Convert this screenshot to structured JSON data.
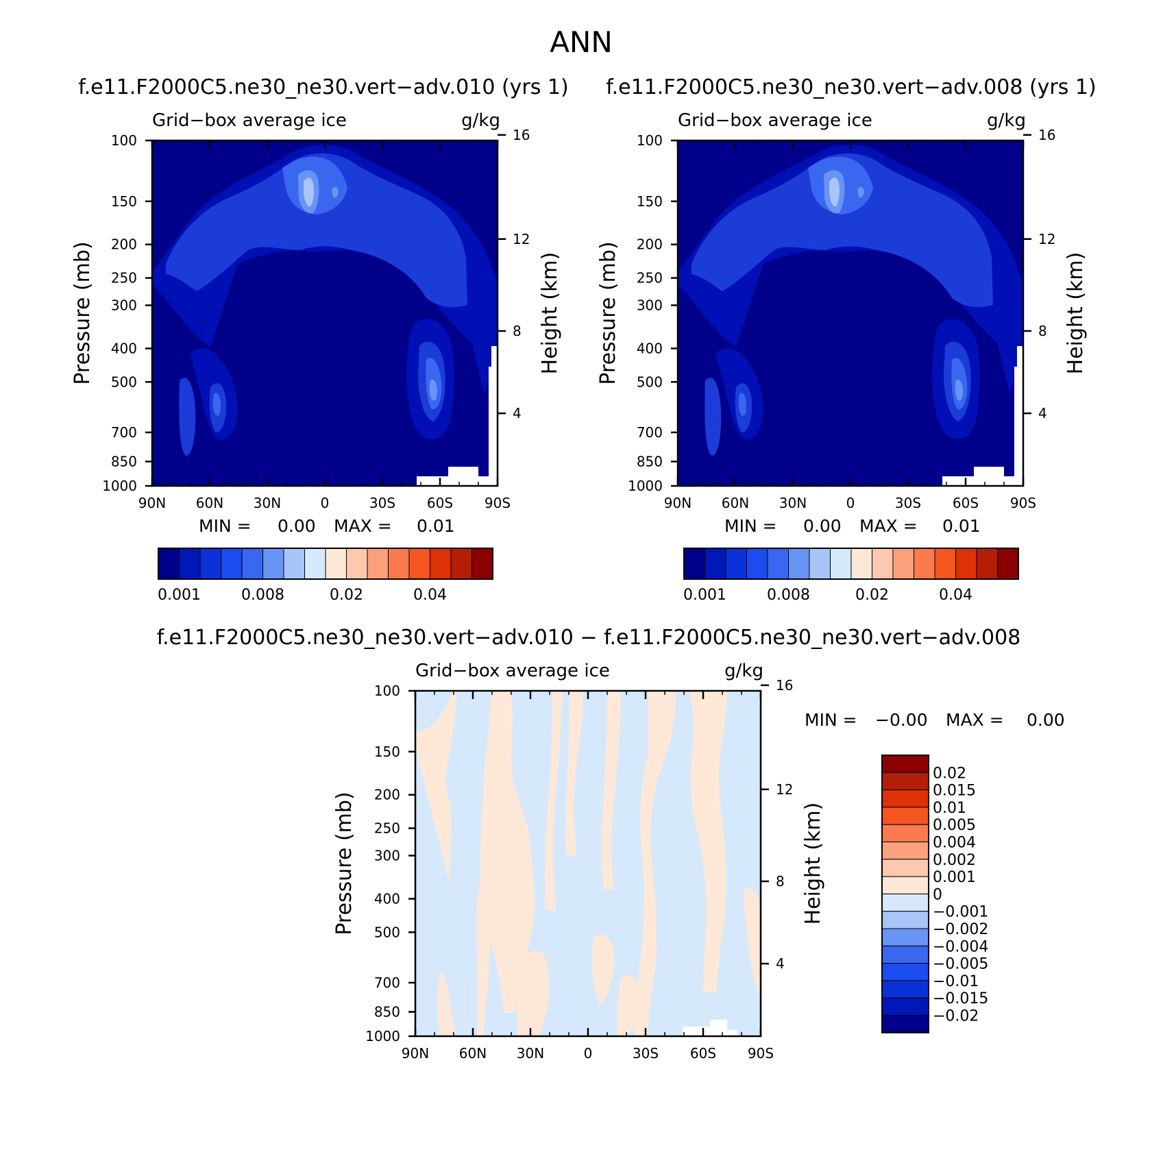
{
  "page": {
    "title": "ANN"
  },
  "colors": {
    "bg_deep": "#00008B",
    "shade1": "#0010B5",
    "shade2": "#1C3CD8",
    "shade3": "#3A67F0",
    "shade4": "#6894F5",
    "shade5": "#A9C4F6",
    "diff_neg": "#D6E9FC",
    "diff_pos": "#FDE8D7"
  },
  "chart_data": [
    {
      "type": "contour",
      "title": "f.e11.F2000C5.ne30_ne30.vert−adv.010 (yrs 1)",
      "variable": "Grid−box average ice",
      "units": "g/kg",
      "ylabel": "Pressure (mb)",
      "ylabel_right": "Height (km)",
      "x_ticks": [
        "90N",
        "60N",
        "30N",
        "0",
        "30S",
        "60S",
        "90S"
      ],
      "y_ticks": [
        "100",
        "150",
        "200",
        "250",
        "300",
        "400",
        "500",
        "700",
        "850",
        "1000"
      ],
      "y_right_ticks": [
        "16",
        "12",
        "8",
        "4"
      ],
      "stats": {
        "min_label": "MIN =",
        "min": "0.00",
        "max_label": "MAX =",
        "max": "0.01"
      },
      "colorbar": {
        "orientation": "horizontal",
        "labels": [
          "0.001",
          "0.008",
          "0.02",
          "0.04"
        ],
        "colors": [
          "#00008B",
          "#0018B8",
          "#0A32D8",
          "#1C4CF0",
          "#3A67F0",
          "#6894F5",
          "#A9C4F6",
          "#D6E9FC",
          "#FDE8D7",
          "#FCC9AE",
          "#FBA27C",
          "#F97A4F",
          "#F5561F",
          "#DD3109",
          "#B51E06",
          "#8B0000"
        ]
      }
    },
    {
      "type": "contour",
      "title": "f.e11.F2000C5.ne30_ne30.vert−adv.008 (yrs 1)",
      "variable": "Grid−box average ice",
      "units": "g/kg",
      "ylabel": "Pressure (mb)",
      "ylabel_right": "Height (km)",
      "x_ticks": [
        "90N",
        "60N",
        "30N",
        "0",
        "30S",
        "60S",
        "90S"
      ],
      "y_ticks": [
        "100",
        "150",
        "200",
        "250",
        "300",
        "400",
        "500",
        "700",
        "850",
        "1000"
      ],
      "y_right_ticks": [
        "16",
        "12",
        "8",
        "4"
      ],
      "stats": {
        "min_label": "MIN =",
        "min": "0.00",
        "max_label": "MAX =",
        "max": "0.01"
      },
      "colorbar": {
        "orientation": "horizontal",
        "labels": [
          "0.001",
          "0.008",
          "0.02",
          "0.04"
        ],
        "colors": [
          "#00008B",
          "#0018B8",
          "#0A32D8",
          "#1C4CF0",
          "#3A67F0",
          "#6894F5",
          "#A9C4F6",
          "#D6E9FC",
          "#FDE8D7",
          "#FCC9AE",
          "#FBA27C",
          "#F97A4F",
          "#F5561F",
          "#DD3109",
          "#B51E06",
          "#8B0000"
        ]
      }
    },
    {
      "type": "contour",
      "title": "f.e11.F2000C5.ne30_ne30.vert−adv.010 − f.e11.F2000C5.ne30_ne30.vert−adv.008",
      "variable": "Grid−box average ice",
      "units": "g/kg",
      "ylabel": "Pressure (mb)",
      "ylabel_right": "Height (km)",
      "x_ticks": [
        "90N",
        "60N",
        "30N",
        "0",
        "30S",
        "60S",
        "90S"
      ],
      "y_ticks": [
        "100",
        "150",
        "200",
        "250",
        "300",
        "400",
        "500",
        "700",
        "850",
        "1000"
      ],
      "y_right_ticks": [
        "16",
        "12",
        "8",
        "4"
      ],
      "stats": {
        "min_label": "MIN =",
        "min": "−0.00",
        "max_label": "MAX =",
        "max": "0.00"
      },
      "colorbar": {
        "orientation": "vertical",
        "labels": [
          "0.02",
          "0.015",
          "0.01",
          "0.005",
          "0.004",
          "0.002",
          "0.001",
          "0",
          "−0.001",
          "−0.002",
          "−0.004",
          "−0.005",
          "−0.01",
          "−0.015",
          "−0.02"
        ],
        "colors": [
          "#8B0000",
          "#B51E06",
          "#DD3109",
          "#F5561F",
          "#F97A4F",
          "#FBA27C",
          "#FCC9AE",
          "#FDE8D7",
          "#D6E9FC",
          "#A9C4F6",
          "#6894F5",
          "#3A67F0",
          "#1C4CF0",
          "#0A32D8",
          "#0018B8",
          "#00008B"
        ]
      }
    }
  ]
}
